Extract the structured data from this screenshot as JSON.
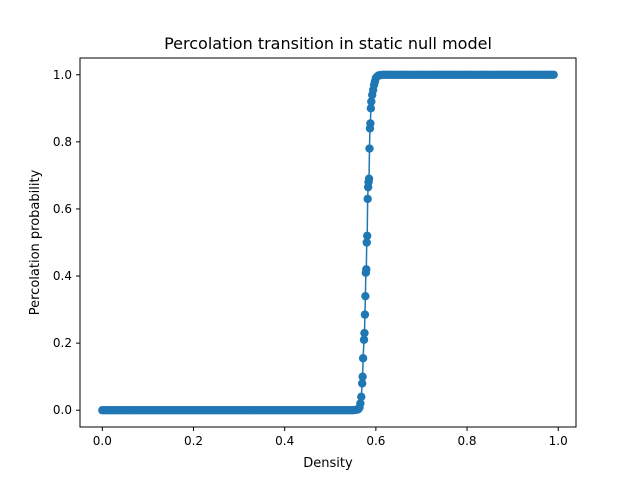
{
  "chart_data": {
    "type": "line",
    "title": "Percolation transition in static null model",
    "xlabel": "Density",
    "ylabel": "Percolation probability",
    "xlim": [
      -0.049,
      1.039
    ],
    "ylim": [
      -0.05,
      1.05
    ],
    "xticks": [
      0.0,
      0.2,
      0.4,
      0.6,
      0.8,
      1.0
    ],
    "xtick_labels": [
      "0.0",
      "0.2",
      "0.4",
      "0.6",
      "0.8",
      "1.0"
    ],
    "yticks": [
      0.0,
      0.2,
      0.4,
      0.6,
      0.8,
      1.0
    ],
    "ytick_labels": [
      "0.0",
      "0.2",
      "0.4",
      "0.6",
      "0.8",
      "1.0"
    ],
    "grid": false,
    "legend": "none",
    "marker": "circle",
    "color": "#1f77b4",
    "transition": [
      [
        0.55,
        0.0
      ],
      [
        0.555,
        0.001
      ],
      [
        0.56,
        0.002
      ],
      [
        0.562,
        0.004
      ],
      [
        0.564,
        0.008
      ],
      [
        0.566,
        0.02
      ],
      [
        0.568,
        0.04
      ],
      [
        0.57,
        0.08
      ],
      [
        0.571,
        0.1
      ],
      [
        0.572,
        0.155
      ],
      [
        0.574,
        0.21
      ],
      [
        0.575,
        0.23
      ],
      [
        0.576,
        0.285
      ],
      [
        0.577,
        0.34
      ],
      [
        0.578,
        0.41
      ],
      [
        0.579,
        0.42
      ],
      [
        0.58,
        0.5
      ],
      [
        0.581,
        0.52
      ],
      [
        0.582,
        0.63
      ],
      [
        0.583,
        0.665
      ],
      [
        0.584,
        0.68
      ],
      [
        0.585,
        0.69
      ],
      [
        0.586,
        0.78
      ],
      [
        0.587,
        0.84
      ],
      [
        0.588,
        0.855
      ],
      [
        0.589,
        0.9
      ],
      [
        0.59,
        0.92
      ],
      [
        0.592,
        0.94
      ],
      [
        0.594,
        0.955
      ],
      [
        0.596,
        0.97
      ],
      [
        0.598,
        0.98
      ],
      [
        0.6,
        0.99
      ],
      [
        0.603,
        0.995
      ],
      [
        0.606,
        0.998
      ],
      [
        0.61,
        0.999
      ],
      [
        0.615,
        1.0
      ]
    ]
  }
}
